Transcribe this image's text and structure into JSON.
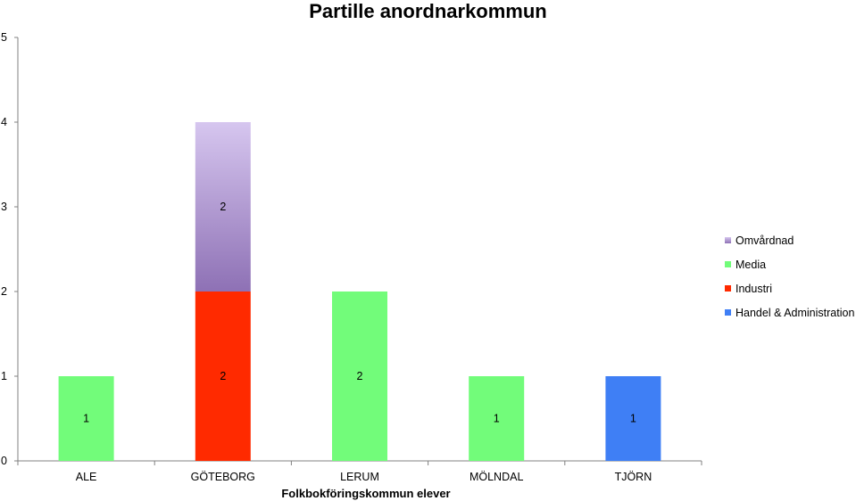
{
  "chart_data": {
    "type": "bar",
    "stacked": true,
    "title": "Partille anordnarkommun",
    "xlabel": "Folkbokföringskommun elever",
    "ylabel": "",
    "ylim": [
      0,
      5
    ],
    "yticks": [
      "0",
      "1",
      "2",
      "3",
      "4",
      "5"
    ],
    "grid": false,
    "legend_position": "right",
    "categories": [
      "ALE",
      "GÖTEBORG",
      "LERUM",
      "MÖLNDAL",
      "TJÖRN"
    ],
    "series": [
      {
        "name": "Handel & Administration",
        "color": "#3f7ff5",
        "values": [
          0,
          0,
          0,
          0,
          1
        ],
        "labels": [
          "",
          "",
          "",
          "",
          "1"
        ]
      },
      {
        "name": "Industri",
        "color": "#ff2a00",
        "values": [
          0,
          2,
          0,
          0,
          0
        ],
        "labels": [
          "",
          "2",
          "",
          "",
          ""
        ]
      },
      {
        "name": "Media",
        "color": "#72fc7a",
        "values": [
          1,
          0,
          2,
          1,
          0
        ],
        "labels": [
          "1",
          "",
          "2",
          "1",
          ""
        ]
      },
      {
        "name": "Omvårdnad",
        "color": "#a88bd0",
        "gradient_top": "#d6c6ef",
        "gradient_bottom": "#8e71b5",
        "values": [
          0,
          2,
          0,
          0,
          0
        ],
        "labels": [
          "",
          "2",
          "",
          "",
          ""
        ]
      }
    ],
    "legend_order": [
      "Omvårdnad",
      "Media",
      "Industri",
      "Handel & Administration"
    ]
  }
}
